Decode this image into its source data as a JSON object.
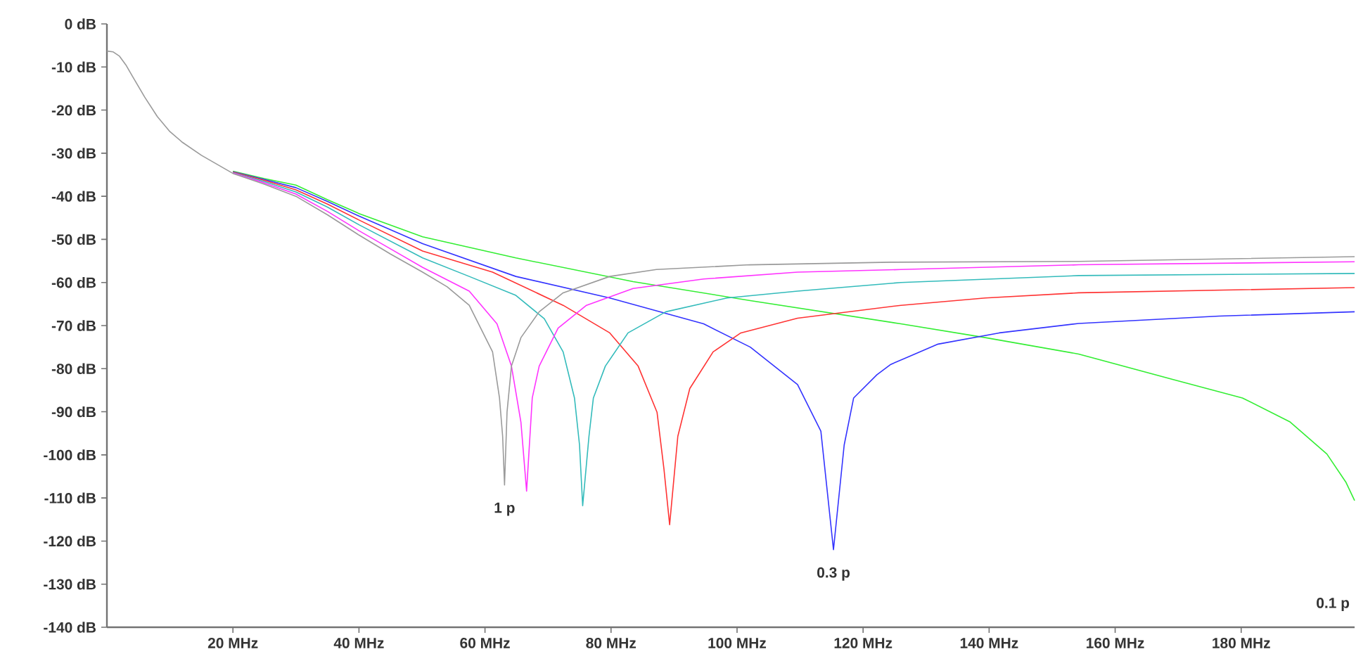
{
  "chart_data": {
    "type": "line",
    "xlim": [
      0,
      198
    ],
    "ylim": [
      -140,
      0
    ],
    "xticks": [
      {
        "value": 20,
        "label": "20 MHz"
      },
      {
        "value": 40,
        "label": "40 MHz"
      },
      {
        "value": 60,
        "label": "60 MHz"
      },
      {
        "value": 80,
        "label": "80 MHz"
      },
      {
        "value": 100,
        "label": "100 MHz"
      },
      {
        "value": 120,
        "label": "120 MHz"
      },
      {
        "value": 140,
        "label": "140 MHz"
      },
      {
        "value": 160,
        "label": "160 MHz"
      },
      {
        "value": 180,
        "label": "180 MHz"
      }
    ],
    "yticks": [
      {
        "value": 0,
        "label": "0 dB"
      },
      {
        "value": -10,
        "label": "-10 dB"
      },
      {
        "value": -20,
        "label": "-20 dB"
      },
      {
        "value": -30,
        "label": "-30 dB"
      },
      {
        "value": -40,
        "label": "-40 dB"
      },
      {
        "value": -50,
        "label": "-50 dB"
      },
      {
        "value": -60,
        "label": "-60 dB"
      },
      {
        "value": -70,
        "label": "-70 dB"
      },
      {
        "value": -80,
        "label": "-80 dB"
      },
      {
        "value": -90,
        "label": "-90 dB"
      },
      {
        "value": -100,
        "label": "-100 dB"
      },
      {
        "value": -110,
        "label": "-110 dB"
      },
      {
        "value": -120,
        "label": "-120 dB"
      },
      {
        "value": -130,
        "label": "-130 dB"
      },
      {
        "value": -140,
        "label": "-140 dB"
      }
    ],
    "annotations": [
      {
        "text": "1 p",
        "x": 63.1,
        "y": -107
      },
      {
        "text": "0.3 p",
        "x": 115.3,
        "y": -122
      },
      "0.1 p"
    ],
    "series": [
      {
        "color": "#33ee33",
        "x": [
          20,
          25,
          30,
          35,
          40,
          50.1,
          64.9,
          83.5,
          102.1,
          126,
          139.4,
          154.2,
          169.1,
          180.2,
          187.7,
          193.6,
          196.6,
          198
        ],
        "values": [
          -34.2,
          -35.9,
          -37.4,
          -40.8,
          -44,
          -49.4,
          -54.3,
          -59.8,
          -64.2,
          -69.6,
          -72.8,
          -76.6,
          -82.5,
          -86.8,
          -92.3,
          -99.8,
          -106.3,
          -110.6
        ]
      },
      {
        "color": "#3333ff",
        "x": [
          20,
          25,
          30,
          35,
          40,
          50.1,
          64.9,
          79.8,
          94.7,
          102.1,
          109.6,
          113.3,
          115.3,
          117,
          118.5,
          122.2,
          124.4,
          131.9,
          141.6,
          154.2,
          176.5,
          198
        ],
        "values": [
          -34.3,
          -36.1,
          -38,
          -41.2,
          -44.6,
          -51,
          -58.6,
          -63.6,
          -69.6,
          -75,
          -83.7,
          -94.5,
          -122,
          -97.7,
          -86.8,
          -81.4,
          -79,
          -74.3,
          -71.7,
          -69.5,
          -67.8,
          -66.8
        ]
      },
      {
        "color": "#ff3333",
        "x": [
          20,
          25,
          30,
          35,
          40,
          50.1,
          61.2,
          72.4,
          79.8,
          84.3,
          87.3,
          88.4,
          89.3,
          90.6,
          92.5,
          96.2,
          100.6,
          109.6,
          126,
          139.4,
          154.2,
          198
        ],
        "values": [
          -34.4,
          -36.3,
          -38.5,
          -41.8,
          -45.5,
          -52.7,
          -57.6,
          -65.3,
          -71.7,
          -79.4,
          -90.1,
          -103.3,
          -116.2,
          -95.7,
          -84.6,
          -76.1,
          -71.7,
          -68.3,
          -65.3,
          -63.6,
          -62.4,
          -61.2
        ]
      },
      {
        "color": "#33bbbb",
        "x": [
          20,
          25,
          30,
          35,
          40,
          50.1,
          57.5,
          64.9,
          69.4,
          72.4,
          74.2,
          75,
          75.5,
          76.5,
          77.2,
          79.1,
          82.7,
          88.7,
          98.4,
          109.6,
          126,
          154.2,
          198
        ],
        "values": [
          -34.5,
          -36.6,
          -39,
          -42.5,
          -46.6,
          -54.3,
          -58.6,
          -63,
          -68.4,
          -76.1,
          -86.8,
          -97.7,
          -111.8,
          -95.7,
          -86.8,
          -79.4,
          -71.7,
          -66.8,
          -63.6,
          -62,
          -60,
          -58.4,
          -57.9
        ]
      },
      {
        "color": "#ff33ff",
        "x": [
          20,
          25,
          30,
          35,
          40,
          45,
          50.1,
          57.5,
          61.9,
          64.2,
          65.7,
          66.6,
          67.5,
          68.6,
          71.6,
          76.1,
          83.5,
          94.7,
          109.6,
          126,
          154.2,
          198
        ],
        "values": [
          -34.6,
          -36.9,
          -39.5,
          -43.5,
          -48,
          -52.2,
          -56.5,
          -62,
          -69.6,
          -79.4,
          -92.4,
          -108.4,
          -86.8,
          -79.4,
          -70.6,
          -65.3,
          -61.4,
          -59.2,
          -57.6,
          -57,
          -55.9,
          -55.2
        ]
      },
      {
        "color": "#9a9a9a",
        "x": [
          0,
          1,
          2,
          3,
          4,
          5,
          6,
          8,
          10,
          12,
          15,
          20,
          25,
          30,
          35,
          40,
          45,
          50.1,
          54,
          57.5,
          61.2,
          62.3,
          62.8,
          63.1,
          63.5,
          64.2,
          65.7,
          68.6,
          72.4,
          79.8,
          87.2,
          102,
          124.4,
          154.2,
          198
        ],
        "values": [
          -6.3,
          -6.5,
          -7.5,
          -9.5,
          -12,
          -14.5,
          -17,
          -21.5,
          -25,
          -27.5,
          -30.5,
          -34.7,
          -37.2,
          -40,
          -44.3,
          -49,
          -53.4,
          -57.6,
          -61,
          -65.3,
          -76.1,
          -86.8,
          -95.7,
          -107,
          -90,
          -79.4,
          -72.8,
          -66.8,
          -62.4,
          -58.6,
          -57,
          -55.9,
          -55.3,
          -55.1,
          -54
        ]
      }
    ]
  }
}
